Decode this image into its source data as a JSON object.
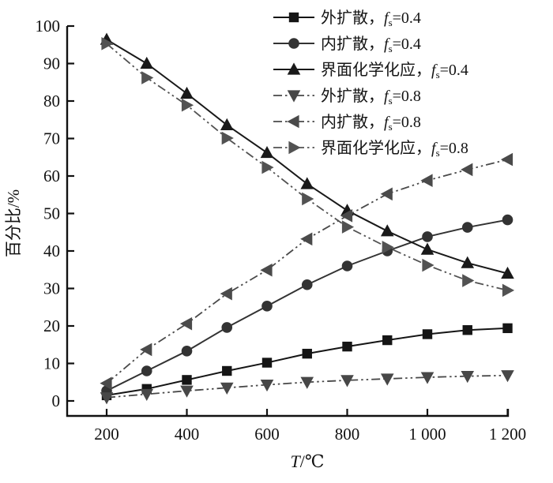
{
  "figure": {
    "background": "#ffffff",
    "axis_color": "#111111",
    "legend": {
      "comma": "，",
      "f_symbol": "f",
      "subscript": "s",
      "equals": "="
    }
  },
  "chart_data": {
    "type": "line",
    "title": "",
    "xlabel": "T/℃",
    "xlabel_var": "T",
    "xlabel_unit": "/℃",
    "ylabel": "百分比/%",
    "xlim": [
      100,
      1200
    ],
    "ylim": [
      -4,
      100
    ],
    "grid": false,
    "legend_position": "top-right",
    "x_ticks": [
      200,
      400,
      600,
      800,
      1000,
      1200
    ],
    "x_tick_labels": [
      "200",
      "400",
      "600",
      "800",
      "1 000",
      "1 200"
    ],
    "y_ticks": [
      0,
      10,
      20,
      30,
      40,
      50,
      60,
      70,
      80,
      90,
      100
    ],
    "y_tick_labels": [
      "0",
      "10",
      "20",
      "30",
      "40",
      "50",
      "60",
      "70",
      "80",
      "90",
      "100"
    ],
    "x": [
      200,
      300,
      400,
      500,
      600,
      700,
      800,
      900,
      1000,
      1100,
      1200
    ],
    "series": [
      {
        "name": "外扩散",
        "fs": "0.4",
        "marker": "square",
        "line": "solid",
        "color": "#151515",
        "values": [
          1.5,
          3.2,
          5.6,
          8.0,
          10.2,
          12.6,
          14.5,
          16.2,
          17.8,
          18.9,
          19.4
        ]
      },
      {
        "name": "内扩散",
        "fs": "0.4",
        "marker": "circle",
        "line": "solid",
        "color": "#333333",
        "values": [
          2.7,
          8.0,
          13.3,
          19.6,
          25.3,
          31.0,
          36.0,
          40.0,
          43.8,
          46.3,
          48.3
        ]
      },
      {
        "name": "界面化学化应",
        "fs": "0.4",
        "marker": "triangle-up",
        "line": "solid",
        "color": "#191919",
        "values": [
          96.4,
          90.0,
          82.0,
          73.6,
          66.2,
          57.9,
          50.8,
          45.3,
          40.4,
          36.8,
          34.0
        ]
      },
      {
        "name": "外扩散",
        "fs": "0.8",
        "marker": "triangle-down",
        "line": "dash-dot-dot",
        "color": "#474747",
        "values": [
          0.9,
          1.8,
          2.7,
          3.5,
          4.3,
          5.0,
          5.5,
          5.9,
          6.3,
          6.6,
          6.8
        ]
      },
      {
        "name": "内扩散",
        "fs": "0.8",
        "marker": "triangle-left",
        "line": "dash-dot-dot",
        "color": "#4a4a4a",
        "values": [
          4.7,
          13.7,
          20.6,
          28.6,
          34.9,
          43.2,
          49.4,
          55.2,
          58.8,
          61.7,
          64.4
        ]
      },
      {
        "name": "界面化学化应",
        "fs": "0.8",
        "marker": "triangle-right",
        "line": "dash-dot-dot",
        "color": "#525252",
        "values": [
          95.3,
          86.2,
          78.9,
          70.1,
          62.3,
          53.9,
          46.4,
          41.0,
          36.2,
          32.1,
          29.5
        ]
      }
    ]
  }
}
